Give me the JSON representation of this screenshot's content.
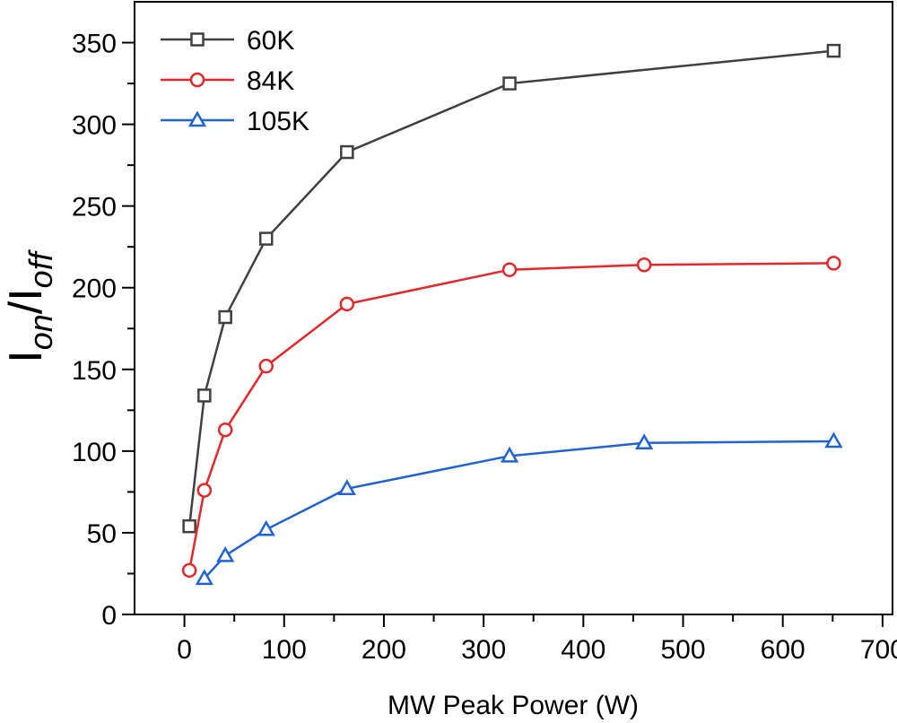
{
  "chart_data": {
    "type": "line",
    "title": "",
    "xlabel": "MW Peak Power (W)",
    "ylabel": {
      "main": "I",
      "sub1": "on",
      "sep": "/I",
      "sub2": "off"
    },
    "xlim": [
      -50,
      710
    ],
    "ylim": [
      0,
      375
    ],
    "xticks": [
      0,
      100,
      200,
      300,
      400,
      500,
      600,
      700
    ],
    "xtick_labels": [
      "0",
      "100",
      "200",
      "300",
      "400",
      "500",
      "600",
      "700"
    ],
    "yticks": [
      0,
      50,
      100,
      150,
      200,
      250,
      300,
      350
    ],
    "ytick_labels": [
      "0",
      "50",
      "100",
      "150",
      "200",
      "250",
      "300",
      "350"
    ],
    "legend_position": "top-left",
    "series": [
      {
        "name": "60K",
        "color": "#404040",
        "marker": "square",
        "x": [
          5,
          20,
          41,
          82,
          163,
          326,
          651
        ],
        "y": [
          54,
          134,
          182,
          230,
          283,
          325,
          345
        ]
      },
      {
        "name": "84K",
        "color": "#e8262a",
        "marker": "circle",
        "x": [
          5,
          20,
          41,
          82,
          163,
          326,
          461,
          651
        ],
        "y": [
          27,
          76,
          113,
          152,
          190,
          211,
          214,
          215
        ]
      },
      {
        "name": "105K",
        "color": "#1f63d6",
        "marker": "triangle",
        "x": [
          20,
          41,
          82,
          163,
          326,
          461,
          651
        ],
        "y": [
          22,
          36,
          52,
          77,
          97,
          105,
          106
        ]
      }
    ]
  }
}
